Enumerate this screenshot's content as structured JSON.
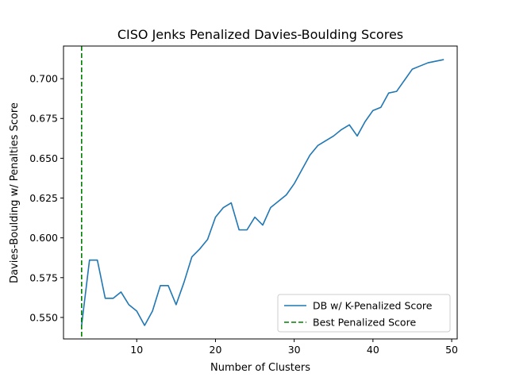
{
  "chart_data": {
    "type": "line",
    "title": "CISO Jenks Penalized Davies-Boulding Scores",
    "xlabel": "Number of Clusters",
    "ylabel": "Davies-Boulding w/ Penalties Score",
    "xlim": [
      0.7,
      50.7
    ],
    "ylim": [
      0.5365,
      0.7205
    ],
    "xticks": [
      10,
      20,
      30,
      40,
      50
    ],
    "yticks": [
      0.55,
      0.575,
      0.6,
      0.625,
      0.65,
      0.675,
      0.7
    ],
    "ytick_labels": [
      "0.550",
      "0.575",
      "0.600",
      "0.625",
      "0.650",
      "0.675",
      "0.700"
    ],
    "grid": false,
    "legend_position": "bottom-right",
    "series": [
      {
        "name": "DB w/ K-Penalized Score",
        "color": "#1f77b4",
        "style": "solid",
        "x": [
          3,
          4,
          5,
          6,
          7,
          8,
          9,
          10,
          11,
          12,
          13,
          14,
          15,
          16,
          17,
          18,
          19,
          20,
          21,
          22,
          23,
          24,
          25,
          26,
          27,
          28,
          29,
          30,
          31,
          32,
          33,
          34,
          35,
          36,
          37,
          38,
          39,
          40,
          41,
          42,
          43,
          44,
          45,
          46,
          47,
          48,
          49
        ],
        "values": [
          0.545,
          0.586,
          0.586,
          0.562,
          0.562,
          0.566,
          0.558,
          0.554,
          0.545,
          0.554,
          0.57,
          0.57,
          0.558,
          0.572,
          0.588,
          0.593,
          0.599,
          0.613,
          0.619,
          0.622,
          0.605,
          0.605,
          0.613,
          0.608,
          0.619,
          0.623,
          0.627,
          0.634,
          0.643,
          0.652,
          0.658,
          0.661,
          0.664,
          0.668,
          0.671,
          0.664,
          0.673,
          0.68,
          0.682,
          0.691,
          0.692,
          0.699,
          0.706,
          0.708,
          0.71,
          0.711,
          0.712
        ]
      },
      {
        "name": "Best Penalized Score",
        "color": "#008000",
        "style": "dashed",
        "x_vertical": 3
      }
    ]
  }
}
